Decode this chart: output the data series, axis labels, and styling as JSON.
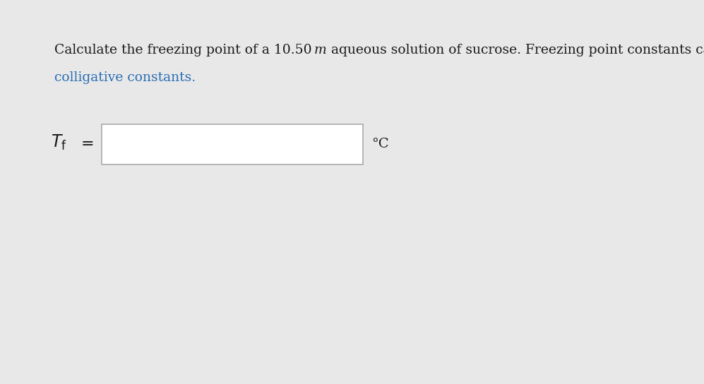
{
  "background_color": "#e8e8e8",
  "page_background": "#ffffff",
  "text_line1_part1": "Calculate the freezing point of a 10.50 ",
  "text_line1_italic": "m",
  "text_line1_part2": " aqueous solution of sucrose. Freezing point constants can be found in the list of",
  "text_line2_link": "colligative constants.",
  "label_unit": "°C",
  "normal_color": "#1a1a1a",
  "link_color": "#2a6eb5",
  "box_edge_color": "#aaaaaa",
  "box_fill_color": "#ffffff",
  "font_size_main": 13.5,
  "font_size_label": 16,
  "font_size_unit": 14
}
